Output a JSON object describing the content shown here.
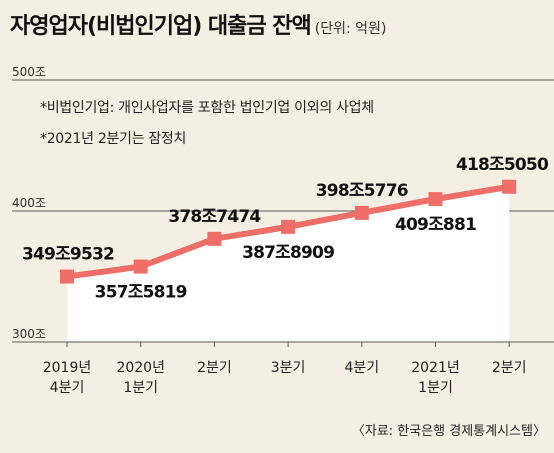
{
  "header": {
    "title": "자영업자(비법인기업) 대출금 잔액",
    "unit": "(단위: 억원)"
  },
  "notes": [
    "*비법인기업: 개인사업자를 포함한 법인기업 이외의 사업체",
    "*2021년 2분기는 잠정치"
  ],
  "source": "〈자료: 한국은행 경제통계시스템〉",
  "colors": {
    "line": "#ef6e68",
    "area": "#ffffff",
    "background": "#f5efe3"
  },
  "chart_data": {
    "type": "area",
    "categories": [
      [
        "2019년",
        "4분기"
      ],
      [
        "2020년",
        "1분기"
      ],
      [
        "2분기"
      ],
      [
        "3분기"
      ],
      [
        "4분기"
      ],
      [
        "2021년",
        "1분기"
      ],
      [
        "2분기"
      ]
    ],
    "values": [
      3499532,
      3575819,
      3787474,
      3878909,
      3985776,
      4090881,
      4185050
    ],
    "data_labels": [
      "349조9532",
      "357조5819",
      "378조7474",
      "387조8909",
      "398조5776",
      "409조881",
      "418조5050"
    ],
    "yticks": [
      {
        "value": 3000000,
        "label": "300조"
      },
      {
        "value": 4000000,
        "label": "400조"
      },
      {
        "value": 5000000,
        "label": "500조"
      }
    ],
    "ylim": [
      3000000,
      5000000
    ],
    "grid": true
  }
}
